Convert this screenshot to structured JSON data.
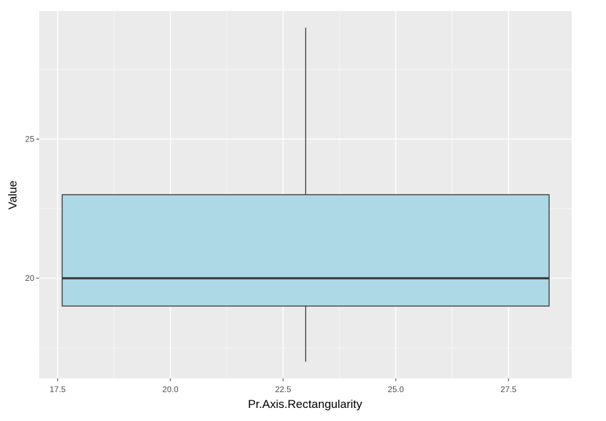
{
  "chart_data": {
    "type": "boxplot",
    "title": "",
    "xlabel": "Pr.Axis.Rectangularity",
    "ylabel": "Value",
    "x_ticks": [
      "17.5",
      "20.0",
      "22.5",
      "25.0",
      "27.5"
    ],
    "x_tick_values": [
      17.5,
      20.0,
      22.5,
      25.0,
      27.5
    ],
    "y_ticks": [
      "20",
      "25"
    ],
    "y_tick_values": [
      20,
      25
    ],
    "xlim": [
      17.09,
      28.9
    ],
    "ylim": [
      16.4,
      29.6
    ],
    "grid": true,
    "legend": "none",
    "box": {
      "x_center": 23.0,
      "x_left": 17.6,
      "x_right": 28.4,
      "whisker_low": 17,
      "q1": 19,
      "median": 20,
      "q3": 23,
      "whisker_high": 29
    },
    "colors": {
      "panel_background": "#ebebeb",
      "grid_major": "#ffffff",
      "grid_minor": "#f5f5f5",
      "box_fill": "#add8e6",
      "box_stroke": "#333333",
      "median_line": "#333333",
      "tick_text": "#4d4d4d",
      "axis_title_text": "#000000"
    }
  }
}
